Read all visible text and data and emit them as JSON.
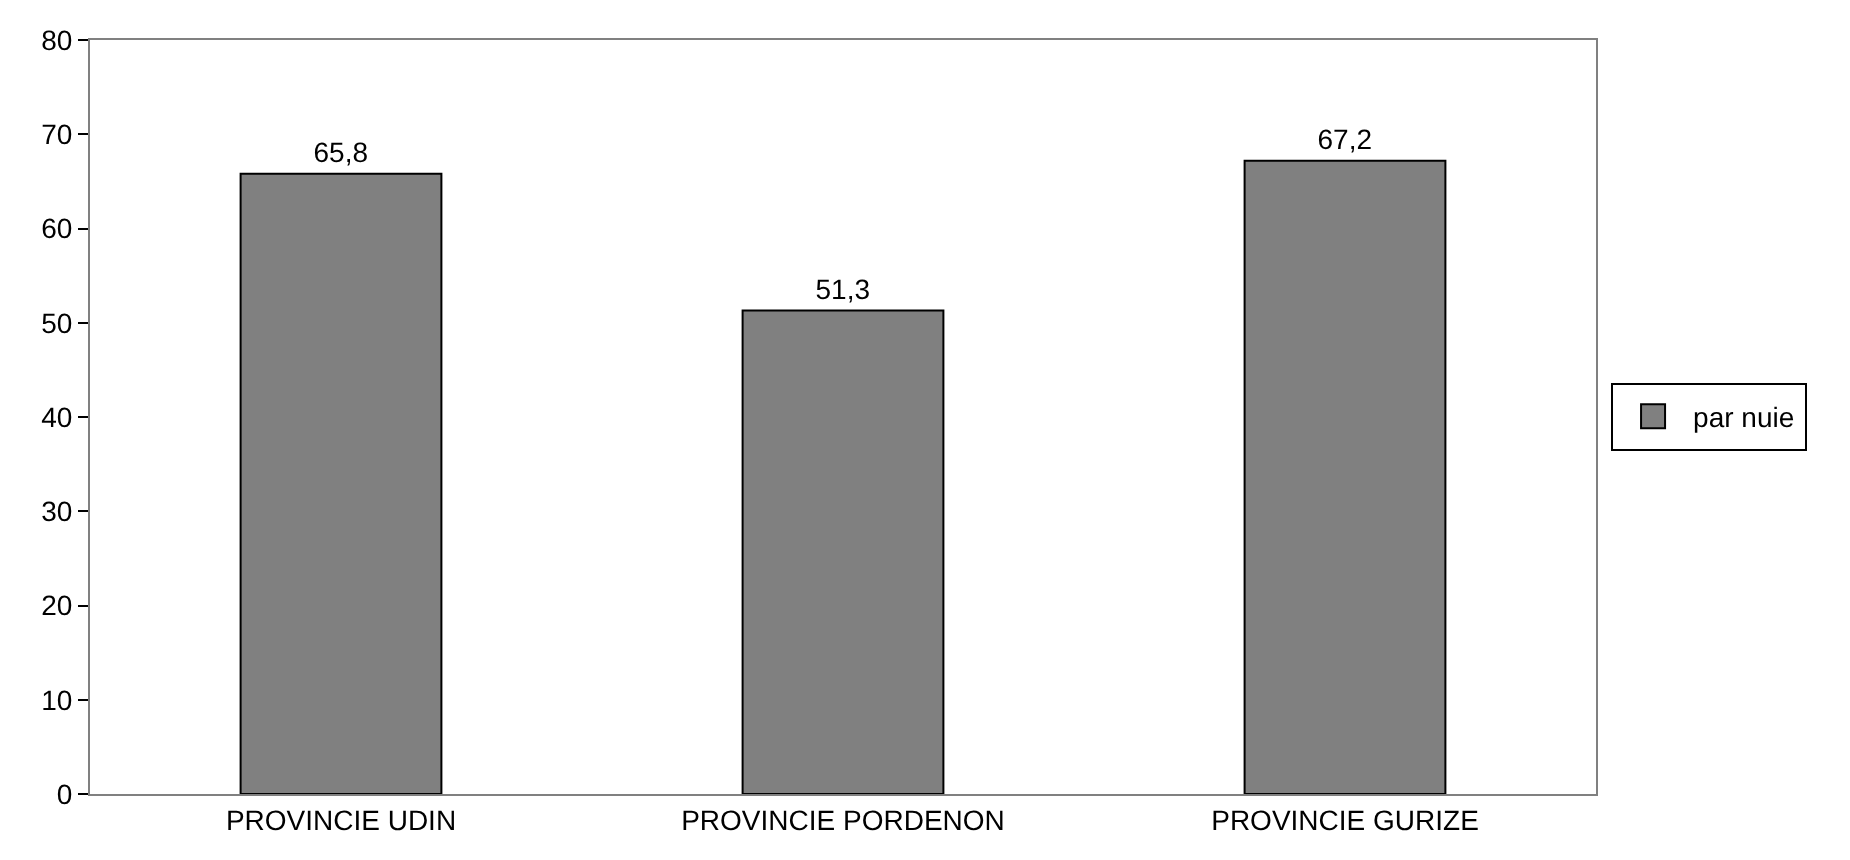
{
  "chart_data": {
    "type": "bar",
    "categories": [
      "PROVINCIE UDIN",
      "PROVINCIE PORDENON",
      "PROVINCIE GURIZE"
    ],
    "series": [
      {
        "name": "par nuie",
        "color": "#808080",
        "values": [
          65.8,
          51.3,
          67.2
        ],
        "value_labels": [
          "65,8",
          "51,3",
          "67,2"
        ]
      }
    ],
    "ylim": [
      0,
      80
    ],
    "yticks": [
      0,
      10,
      20,
      30,
      40,
      50,
      60,
      70,
      80
    ],
    "legend": "right"
  }
}
